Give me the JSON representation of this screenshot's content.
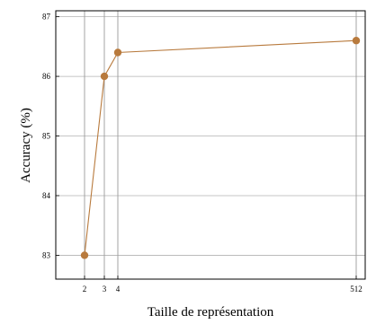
{
  "chart_data": {
    "type": "line",
    "xlabel": "Taille de représentation",
    "ylabel": "Accuracy (%)",
    "x_ticks": [
      "2",
      "3",
      "4",
      "512"
    ],
    "y_ticks": [
      "83",
      "84",
      "85",
      "86",
      "87"
    ],
    "ylim": [
      82.6,
      87.1
    ],
    "grid": true,
    "series": [
      {
        "x": [
          2,
          3,
          4,
          512
        ],
        "y": [
          83.0,
          86.0,
          86.4,
          86.6
        ],
        "color": "#b87a3d"
      }
    ]
  }
}
